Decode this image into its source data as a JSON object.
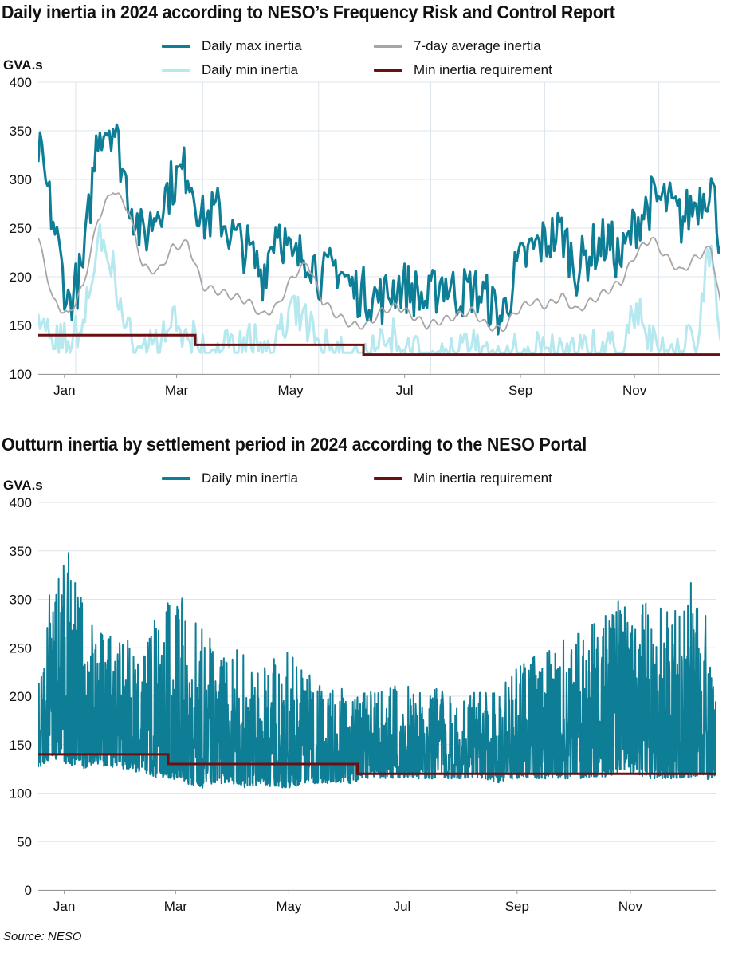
{
  "source": "Source: NESO",
  "colors": {
    "max": "#0e7e96",
    "min_light": "#b5e8ef",
    "avg": "#a6a6a6",
    "req": "#6b0f12",
    "grid": "#dde4ea",
    "axis": "#999999"
  },
  "chart_data": [
    {
      "type": "line",
      "title": "Daily inertia in 2024 according to NESO’s Frequency Risk and Control Report",
      "ylabel": "GVA.s",
      "ylim": [
        100,
        400
      ],
      "yticks": [
        100,
        150,
        200,
        250,
        300,
        350,
        400
      ],
      "xlim": [
        "2024-01-01",
        "2024-12-31"
      ],
      "xticks": [
        {
          "label": "Jan",
          "date": "2024-01-15"
        },
        {
          "label": "Mar",
          "date": "2024-03-15"
        },
        {
          "label": "May",
          "date": "2024-05-15"
        },
        {
          "label": "Jul",
          "date": "2024-07-15"
        },
        {
          "label": "Sep",
          "date": "2024-09-15"
        },
        {
          "label": "Nov",
          "date": "2024-11-15"
        }
      ],
      "gridlines": {
        "horizontal": true,
        "vertical_dates": [
          "2024-01-21",
          "2024-03-29",
          "2024-05-30",
          "2024-07-29",
          "2024-09-28",
          "2024-11-28"
        ]
      },
      "legend_placement": "top",
      "series": [
        {
          "name": "Daily max inertia",
          "style": "line",
          "x": [
            "2024-01-01",
            "2024-01-09",
            "2024-01-17",
            "2024-01-25",
            "2024-02-02",
            "2024-02-10",
            "2024-02-18",
            "2024-02-26",
            "2024-03-05",
            "2024-03-13",
            "2024-03-21",
            "2024-03-29",
            "2024-04-06",
            "2024-04-14",
            "2024-04-22",
            "2024-04-30",
            "2024-05-08",
            "2024-05-16",
            "2024-05-24",
            "2024-06-01",
            "2024-06-09",
            "2024-06-17",
            "2024-06-25",
            "2024-07-03",
            "2024-07-11",
            "2024-07-19",
            "2024-07-27",
            "2024-08-04",
            "2024-08-12",
            "2024-08-20",
            "2024-08-28",
            "2024-09-05",
            "2024-09-13",
            "2024-09-21",
            "2024-09-29",
            "2024-10-07",
            "2024-10-15",
            "2024-10-23",
            "2024-10-31",
            "2024-11-08",
            "2024-11-16",
            "2024-11-24",
            "2024-12-02",
            "2024-12-10",
            "2024-12-18",
            "2024-12-26",
            "2024-12-31"
          ],
          "y": [
            335,
            260,
            175,
            210,
            355,
            360,
            290,
            240,
            275,
            300,
            315,
            260,
            270,
            245,
            230,
            205,
            260,
            215,
            230,
            200,
            215,
            190,
            185,
            180,
            195,
            190,
            175,
            200,
            185,
            190,
            180,
            160,
            210,
            230,
            240,
            250,
            210,
            230,
            240,
            220,
            260,
            280,
            280,
            260,
            280,
            300,
            240
          ]
        },
        {
          "name": "7-day average inertia",
          "style": "line",
          "x": [
            "2024-01-01",
            "2024-01-09",
            "2024-01-17",
            "2024-01-25",
            "2024-02-02",
            "2024-02-10",
            "2024-02-18",
            "2024-02-26",
            "2024-03-05",
            "2024-03-13",
            "2024-03-21",
            "2024-03-29",
            "2024-04-06",
            "2024-04-14",
            "2024-04-22",
            "2024-04-30",
            "2024-05-08",
            "2024-05-16",
            "2024-05-24",
            "2024-06-01",
            "2024-06-09",
            "2024-06-17",
            "2024-06-25",
            "2024-07-03",
            "2024-07-11",
            "2024-07-19",
            "2024-07-27",
            "2024-08-04",
            "2024-08-12",
            "2024-08-20",
            "2024-08-28",
            "2024-09-05",
            "2024-09-13",
            "2024-09-21",
            "2024-09-29",
            "2024-10-07",
            "2024-10-15",
            "2024-10-23",
            "2024-10-31",
            "2024-11-08",
            "2024-11-16",
            "2024-11-24",
            "2024-12-02",
            "2024-12-10",
            "2024-12-18",
            "2024-12-26",
            "2024-12-31"
          ],
          "y": [
            240,
            175,
            160,
            190,
            260,
            290,
            270,
            210,
            205,
            230,
            235,
            190,
            185,
            180,
            175,
            160,
            170,
            200,
            215,
            175,
            160,
            150,
            150,
            165,
            170,
            160,
            150,
            155,
            160,
            165,
            150,
            145,
            165,
            175,
            170,
            180,
            165,
            175,
            185,
            195,
            225,
            240,
            220,
            205,
            220,
            230,
            170
          ]
        },
        {
          "name": "Daily min inertia",
          "style": "line",
          "x": [
            "2024-01-01",
            "2024-01-09",
            "2024-01-17",
            "2024-01-25",
            "2024-02-02",
            "2024-02-10",
            "2024-02-18",
            "2024-02-26",
            "2024-03-05",
            "2024-03-13",
            "2024-03-21",
            "2024-03-29",
            "2024-04-06",
            "2024-04-14",
            "2024-04-22",
            "2024-04-30",
            "2024-05-08",
            "2024-05-16",
            "2024-05-24",
            "2024-06-01",
            "2024-06-09",
            "2024-06-17",
            "2024-06-25",
            "2024-07-03",
            "2024-07-11",
            "2024-07-19",
            "2024-07-27",
            "2024-08-04",
            "2024-08-12",
            "2024-08-20",
            "2024-08-28",
            "2024-09-05",
            "2024-09-13",
            "2024-09-21",
            "2024-09-29",
            "2024-10-07",
            "2024-10-15",
            "2024-10-23",
            "2024-10-31",
            "2024-11-08",
            "2024-11-16",
            "2024-11-24",
            "2024-12-02",
            "2024-12-10",
            "2024-12-18",
            "2024-12-26",
            "2024-12-31"
          ],
          "y": [
            175,
            140,
            145,
            165,
            250,
            220,
            150,
            140,
            145,
            160,
            150,
            135,
            140,
            135,
            150,
            140,
            145,
            175,
            160,
            140,
            130,
            125,
            130,
            140,
            150,
            135,
            130,
            135,
            130,
            140,
            125,
            125,
            135,
            140,
            135,
            130,
            130,
            140,
            135,
            130,
            180,
            140,
            140,
            135,
            150,
            250,
            130
          ]
        },
        {
          "name": "Min inertia requirement",
          "style": "step",
          "x": [
            "2024-01-01",
            "2024-03-25",
            "2024-06-23",
            "2024-12-31"
          ],
          "y": [
            140,
            130,
            120,
            120
          ]
        }
      ]
    },
    {
      "type": "line",
      "title": "Outturn inertia by settlement period in 2024 according to the NESO Portal",
      "ylabel": "GVA.s",
      "ylim": [
        0,
        400
      ],
      "yticks": [
        0,
        50,
        100,
        150,
        200,
        250,
        300,
        350,
        400
      ],
      "xlim": [
        "2024-01-01",
        "2024-12-31"
      ],
      "xticks": [
        {
          "label": "Jan",
          "date": "2024-01-15"
        },
        {
          "label": "Mar",
          "date": "2024-03-15"
        },
        {
          "label": "May",
          "date": "2024-05-15"
        },
        {
          "label": "Jul",
          "date": "2024-07-15"
        },
        {
          "label": "Sep",
          "date": "2024-09-15"
        },
        {
          "label": "Nov",
          "date": "2024-11-15"
        }
      ],
      "gridlines": {
        "horizontal": true
      },
      "legend_placement": "top",
      "series": [
        {
          "name": "Daily min inertia",
          "style": "band",
          "x": [
            "2024-01-01",
            "2024-01-09",
            "2024-01-17",
            "2024-01-25",
            "2024-02-02",
            "2024-02-10",
            "2024-02-18",
            "2024-02-26",
            "2024-03-05",
            "2024-03-13",
            "2024-03-21",
            "2024-03-29",
            "2024-04-06",
            "2024-04-14",
            "2024-04-22",
            "2024-04-30",
            "2024-05-08",
            "2024-05-16",
            "2024-05-24",
            "2024-06-01",
            "2024-06-09",
            "2024-06-17",
            "2024-06-25",
            "2024-07-03",
            "2024-07-11",
            "2024-07-19",
            "2024-07-27",
            "2024-08-04",
            "2024-08-12",
            "2024-08-20",
            "2024-08-28",
            "2024-09-05",
            "2024-09-13",
            "2024-09-21",
            "2024-09-29",
            "2024-10-07",
            "2024-10-15",
            "2024-10-23",
            "2024-10-31",
            "2024-11-08",
            "2024-11-16",
            "2024-11-24",
            "2024-12-02",
            "2024-12-10",
            "2024-12-18",
            "2024-12-26",
            "2024-12-31"
          ],
          "high": [
            215,
            340,
            350,
            300,
            270,
            265,
            260,
            255,
            300,
            310,
            300,
            270,
            260,
            255,
            240,
            225,
            255,
            250,
            230,
            215,
            215,
            205,
            205,
            205,
            215,
            215,
            200,
            210,
            210,
            215,
            205,
            205,
            225,
            240,
            250,
            260,
            265,
            270,
            290,
            300,
            305,
            300,
            295,
            300,
            330,
            280,
            200
          ],
          "low": [
            125,
            135,
            130,
            125,
            130,
            125,
            125,
            120,
            115,
            115,
            110,
            105,
            110,
            110,
            105,
            110,
            105,
            105,
            110,
            110,
            110,
            110,
            115,
            115,
            115,
            115,
            115,
            115,
            115,
            115,
            115,
            110,
            115,
            115,
            115,
            115,
            115,
            115,
            115,
            120,
            120,
            115,
            115,
            115,
            115,
            115,
            110
          ]
        },
        {
          "name": "Min inertia requirement",
          "style": "step",
          "x": [
            "2024-01-01",
            "2024-03-11",
            "2024-06-21",
            "2024-12-31"
          ],
          "y": [
            140,
            130,
            120,
            120
          ]
        }
      ]
    }
  ]
}
